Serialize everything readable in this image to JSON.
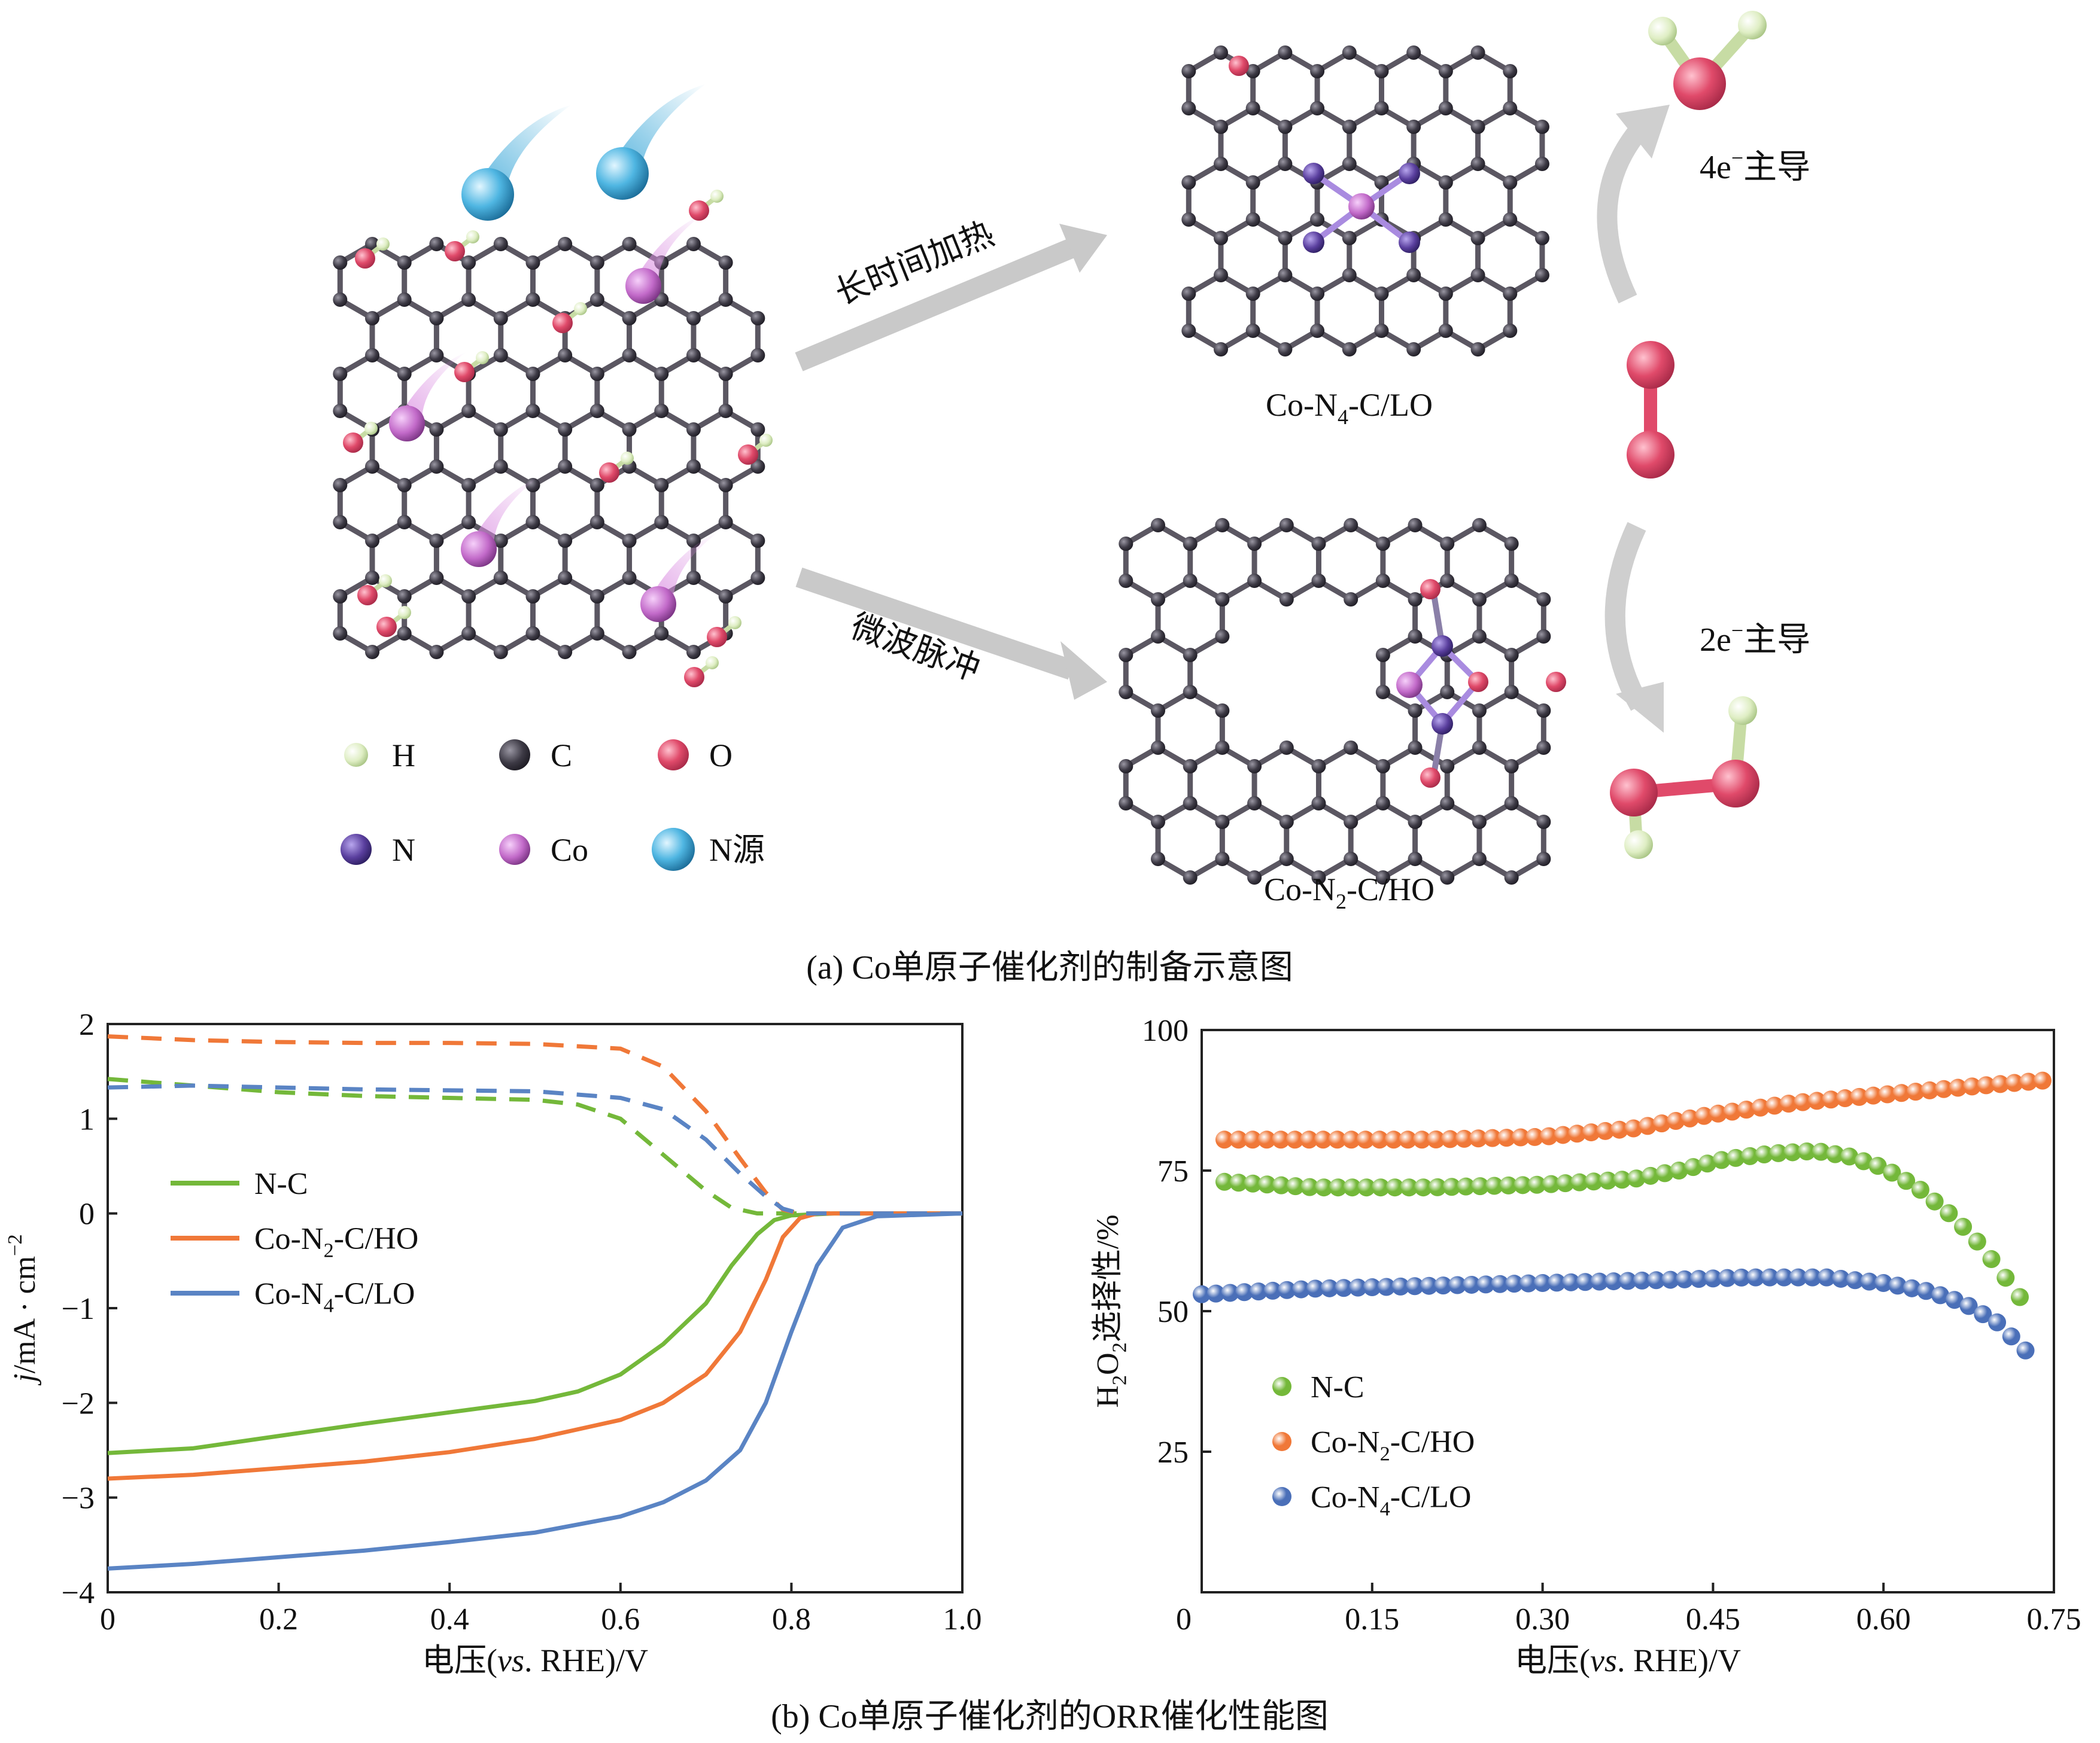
{
  "panel_a": {
    "caption": "(a) Co单原子催化剂的制备示意图",
    "arrow_top_label": "长时间加热",
    "arrow_bottom_label": "微波脉冲",
    "struct_top_label": {
      "base": "Co-N",
      "sub": "4",
      "rest": "-C/LO"
    },
    "struct_bottom_label": {
      "base": "Co-N",
      "sub": "2",
      "rest": "-C/HO"
    },
    "route_4e_label": {
      "pre": "4e",
      "sup": "−",
      "post": "主导"
    },
    "route_2e_label": {
      "pre": "2e",
      "sup": "−",
      "post": "主导"
    },
    "legend": [
      {
        "symbol": "H",
        "color": "#dff0c2"
      },
      {
        "symbol": "C",
        "color": "#3a3740"
      },
      {
        "symbol": "O",
        "color": "#e0506e"
      },
      {
        "symbol": "N",
        "color": "#5a3f9e"
      },
      {
        "symbol": "Co",
        "color": "#c26ac9"
      },
      {
        "symbol": "N源",
        "color": "#3aa7d8"
      }
    ]
  },
  "panel_b": {
    "caption": "(b) Co单原子催化剂的ORR催化性能图"
  },
  "chart_data": [
    {
      "type": "line",
      "xlabel": {
        "pre": "电压(",
        "ital": "vs",
        "post": ". RHE)/V"
      },
      "ylabel": {
        "ital": "j",
        "rest": "/mA · cm",
        "sup": "−2"
      },
      "xlim": [
        0,
        1.0
      ],
      "ylim": [
        -4,
        2
      ],
      "xticks": [
        "0",
        "0.2",
        "0.4",
        "0.6",
        "0.8",
        "1.0"
      ],
      "yticks": [
        "2",
        "1",
        "0",
        "−1",
        "−2",
        "−3",
        "−4"
      ],
      "legend": [
        {
          "base": "N-C",
          "sub": "",
          "rest": ""
        },
        {
          "base": "Co-N",
          "sub": "2",
          "rest": "-C/HO"
        },
        {
          "base": "Co-N",
          "sub": "4",
          "rest": "-C/LO"
        }
      ],
      "series": [
        {
          "color": "#74b83a",
          "disk": [
            [
              0,
              -2.53
            ],
            [
              0.1,
              -2.48
            ],
            [
              0.2,
              -2.35
            ],
            [
              0.3,
              -2.22
            ],
            [
              0.4,
              -2.1
            ],
            [
              0.5,
              -1.98
            ],
            [
              0.55,
              -1.88
            ],
            [
              0.6,
              -1.7
            ],
            [
              0.65,
              -1.38
            ],
            [
              0.7,
              -0.95
            ],
            [
              0.73,
              -0.55
            ],
            [
              0.76,
              -0.22
            ],
            [
              0.78,
              -0.07
            ],
            [
              0.8,
              -0.02
            ],
            [
              0.85,
              0
            ],
            [
              1.0,
              0
            ]
          ],
          "ring": [
            [
              0,
              1.42
            ],
            [
              0.1,
              1.35
            ],
            [
              0.2,
              1.28
            ],
            [
              0.3,
              1.24
            ],
            [
              0.4,
              1.22
            ],
            [
              0.5,
              1.2
            ],
            [
              0.55,
              1.15
            ],
            [
              0.6,
              1.0
            ],
            [
              0.65,
              0.62
            ],
            [
              0.7,
              0.24
            ],
            [
              0.73,
              0.06
            ],
            [
              0.76,
              0
            ],
            [
              1.0,
              0
            ]
          ]
        },
        {
          "color": "#f07838",
          "disk": [
            [
              0,
              -2.8
            ],
            [
              0.1,
              -2.76
            ],
            [
              0.2,
              -2.69
            ],
            [
              0.3,
              -2.62
            ],
            [
              0.4,
              -2.52
            ],
            [
              0.5,
              -2.38
            ],
            [
              0.6,
              -2.18
            ],
            [
              0.65,
              -2.0
            ],
            [
              0.7,
              -1.7
            ],
            [
              0.74,
              -1.25
            ],
            [
              0.77,
              -0.7
            ],
            [
              0.79,
              -0.25
            ],
            [
              0.81,
              -0.05
            ],
            [
              0.83,
              0
            ],
            [
              1.0,
              0
            ]
          ],
          "ring": [
            [
              0,
              1.87
            ],
            [
              0.1,
              1.83
            ],
            [
              0.2,
              1.81
            ],
            [
              0.3,
              1.8
            ],
            [
              0.4,
              1.8
            ],
            [
              0.5,
              1.79
            ],
            [
              0.6,
              1.74
            ],
            [
              0.65,
              1.55
            ],
            [
              0.7,
              1.08
            ],
            [
              0.74,
              0.58
            ],
            [
              0.77,
              0.22
            ],
            [
              0.79,
              0.04
            ],
            [
              0.81,
              0
            ],
            [
              1.0,
              0
            ]
          ]
        },
        {
          "color": "#5a84c4",
          "disk": [
            [
              0,
              -3.75
            ],
            [
              0.1,
              -3.7
            ],
            [
              0.2,
              -3.63
            ],
            [
              0.3,
              -3.56
            ],
            [
              0.4,
              -3.47
            ],
            [
              0.5,
              -3.37
            ],
            [
              0.6,
              -3.2
            ],
            [
              0.65,
              -3.05
            ],
            [
              0.7,
              -2.82
            ],
            [
              0.74,
              -2.5
            ],
            [
              0.77,
              -2.0
            ],
            [
              0.8,
              -1.25
            ],
            [
              0.83,
              -0.55
            ],
            [
              0.86,
              -0.15
            ],
            [
              0.9,
              -0.03
            ],
            [
              1.0,
              0
            ]
          ],
          "ring": [
            [
              0,
              1.33
            ],
            [
              0.1,
              1.35
            ],
            [
              0.2,
              1.33
            ],
            [
              0.3,
              1.31
            ],
            [
              0.4,
              1.3
            ],
            [
              0.5,
              1.29
            ],
            [
              0.6,
              1.22
            ],
            [
              0.65,
              1.1
            ],
            [
              0.7,
              0.78
            ],
            [
              0.74,
              0.42
            ],
            [
              0.77,
              0.18
            ],
            [
              0.79,
              0.05
            ],
            [
              0.81,
              0
            ],
            [
              1.0,
              0
            ]
          ]
        }
      ]
    },
    {
      "type": "scatter",
      "xlabel": {
        "pre": "电压(",
        "ital": "vs",
        "post": ". RHE)/V"
      },
      "ylabel": {
        "pre": "H",
        "sub1": "2",
        "mid": "O",
        "sub2": "2",
        "post": "选择性/%"
      },
      "xlim": [
        0,
        0.75
      ],
      "ylim": [
        0,
        100
      ],
      "xticks": [
        "0",
        "0.15",
        "0.30",
        "0.45",
        "0.60",
        "0.75"
      ],
      "yticks": [
        "100",
        "75",
        "50",
        "25"
      ],
      "legend": [
        {
          "base": "N-C",
          "sub": "",
          "rest": ""
        },
        {
          "base": "Co-N",
          "sub": "2",
          "rest": "-C/HO"
        },
        {
          "base": "Co-N",
          "sub": "4",
          "rest": "-C/LO"
        }
      ],
      "series": [
        {
          "color": "#74b83a",
          "points": [
            [
              0.02,
              73
            ],
            [
              0.1,
              72
            ],
            [
              0.2,
              72
            ],
            [
              0.3,
              72.5
            ],
            [
              0.38,
              73.5
            ],
            [
              0.42,
              75
            ],
            [
              0.46,
              77
            ],
            [
              0.5,
              78
            ],
            [
              0.54,
              78.5
            ],
            [
              0.57,
              77.5
            ],
            [
              0.6,
              75.5
            ],
            [
              0.63,
              72
            ],
            [
              0.66,
              67
            ],
            [
              0.68,
              63
            ],
            [
              0.7,
              58
            ],
            [
              0.72,
              52.5
            ]
          ]
        },
        {
          "color": "#f07838",
          "points": [
            [
              0.02,
              80.5
            ],
            [
              0.1,
              80.5
            ],
            [
              0.2,
              80.5
            ],
            [
              0.3,
              81
            ],
            [
              0.38,
              82.5
            ],
            [
              0.45,
              85
            ],
            [
              0.52,
              87
            ],
            [
              0.6,
              88.5
            ],
            [
              0.68,
              90
            ],
            [
              0.74,
              91
            ]
          ]
        },
        {
          "color": "#4a6fb8",
          "points": [
            [
              0.0,
              53
            ],
            [
              0.1,
              54
            ],
            [
              0.2,
              54.5
            ],
            [
              0.3,
              55
            ],
            [
              0.4,
              55.5
            ],
            [
              0.48,
              56
            ],
            [
              0.55,
              56
            ],
            [
              0.6,
              55
            ],
            [
              0.64,
              53.5
            ],
            [
              0.67,
              51.5
            ],
            [
              0.7,
              48
            ],
            [
              0.725,
              43
            ]
          ]
        }
      ]
    }
  ]
}
